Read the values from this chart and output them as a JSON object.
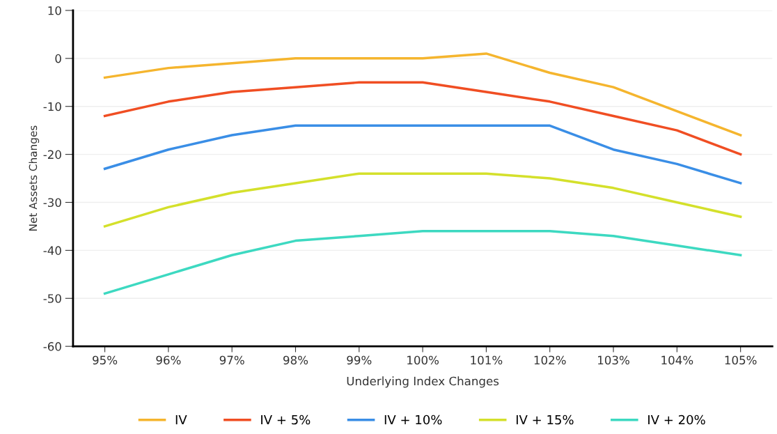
{
  "chart_data": {
    "type": "line",
    "xlabel": "Underlying Index Changes",
    "ylabel": "Net Assets Changes",
    "categories": [
      "95%",
      "96%",
      "97%",
      "98%",
      "99%",
      "100%",
      "101%",
      "102%",
      "103%",
      "104%",
      "105%"
    ],
    "series": [
      {
        "name": "IV",
        "color": "#f5b52e",
        "values": [
          -4,
          -2,
          -1,
          0,
          0,
          0,
          1,
          -3,
          -6,
          -11,
          -16
        ]
      },
      {
        "name": "IV + 5%",
        "color": "#f04e23",
        "values": [
          -12,
          -9,
          -7,
          -6,
          -5,
          -5,
          -7,
          -9,
          -12,
          -15,
          -20
        ]
      },
      {
        "name": "IV + 10%",
        "color": "#3a8ee6",
        "values": [
          -23,
          -19,
          -16,
          -14,
          -14,
          -14,
          -14,
          -14,
          -19,
          -22,
          -26
        ]
      },
      {
        "name": "IV + 15%",
        "color": "#d4e02b",
        "values": [
          -35,
          -31,
          -28,
          -26,
          -24,
          -24,
          -24,
          -25,
          -27,
          -30,
          -33
        ]
      },
      {
        "name": "IV + 20%",
        "color": "#3dd9c1",
        "values": [
          -49,
          -45,
          -41,
          -38,
          -37,
          -36,
          -36,
          -36,
          -37,
          -39,
          -41
        ]
      }
    ],
    "ylim": [
      -60,
      10
    ],
    "yticks": [
      -60,
      -50,
      -40,
      -30,
      -20,
      -10,
      0,
      10
    ],
    "grid": "y",
    "legend": "bottom",
    "marker": "none",
    "line_style": "solid"
  }
}
